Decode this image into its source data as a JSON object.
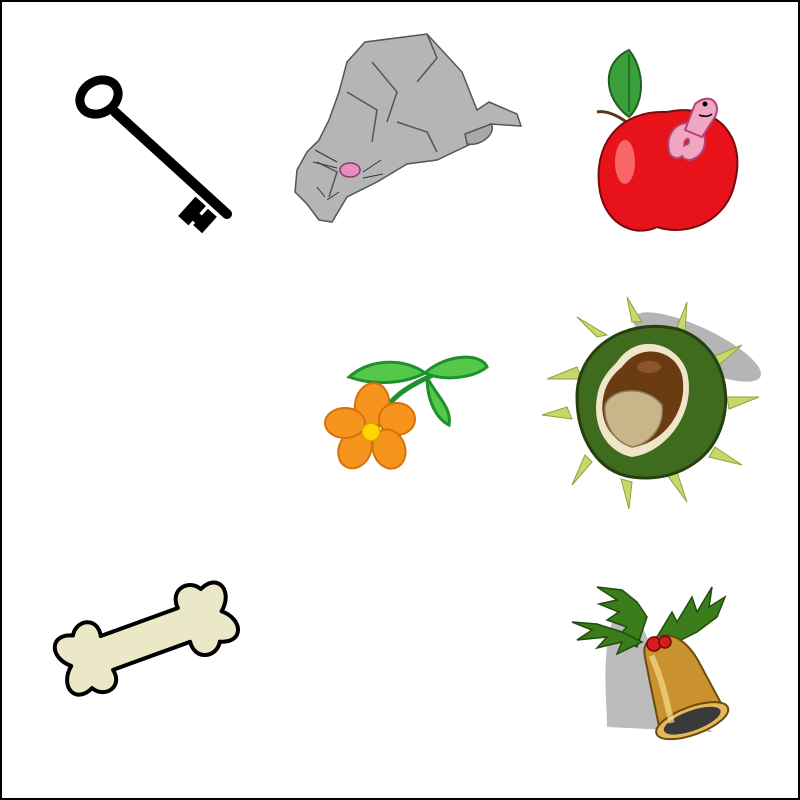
{
  "grid": {
    "rows": 3,
    "columns": 3,
    "cells": [
      {
        "icon": "key-icon"
      },
      {
        "icon": "cat-icon"
      },
      {
        "icon": "apple-with-worm-icon"
      },
      {
        "icon": "empty"
      },
      {
        "icon": "flower-icon"
      },
      {
        "icon": "chestnut-icon"
      },
      {
        "icon": "bone-icon"
      },
      {
        "icon": "empty"
      },
      {
        "icon": "holly-bell-icon"
      }
    ]
  },
  "colors": {
    "border": "#000000",
    "background": "#ffffff",
    "apple_red": "#e8121b",
    "leaf_green": "#3aa13a",
    "flower_orange": "#f7941d",
    "chestnut_brown": "#6b3b12",
    "husk_green": "#3f6b1e",
    "bone_cream": "#ebe8c8",
    "bell_gold": "#c9922e",
    "cat_gray": "#b5b5b5"
  }
}
